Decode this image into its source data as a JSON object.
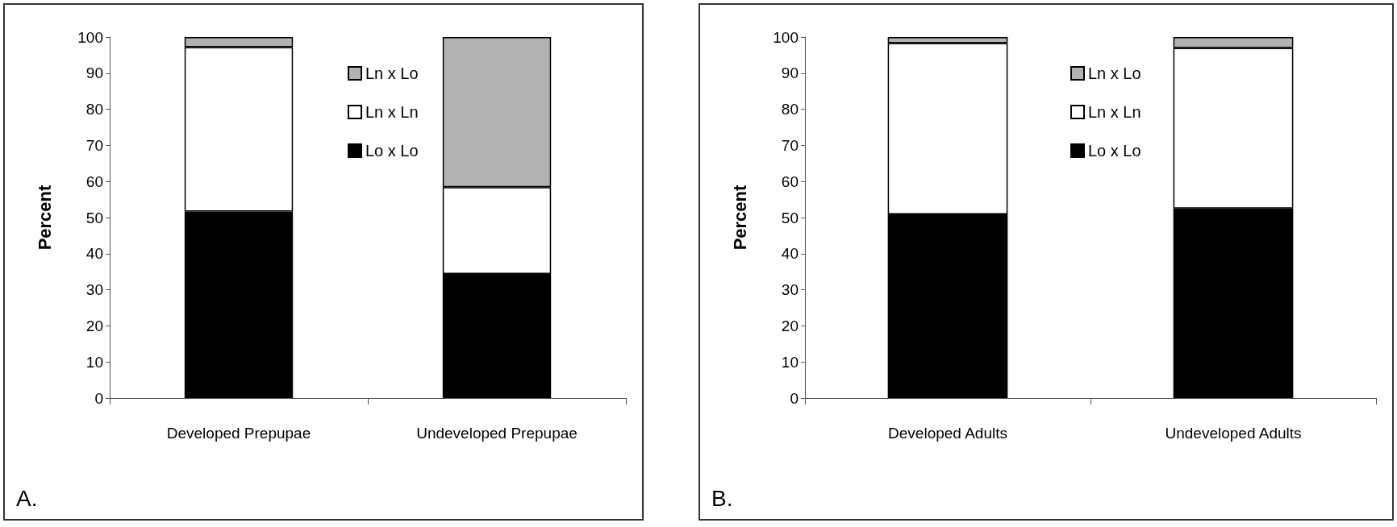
{
  "chart_data": [
    {
      "type": "bar",
      "stacked": true,
      "ylabel": "Percent",
      "categories": [
        "Developed Prepupae",
        "Undeveloped Prepupae"
      ],
      "series": [
        {
          "name": "Lo x Lo",
          "color": "#000000",
          "values": [
            51.7,
            34.4
          ]
        },
        {
          "name": "Ln x Ln",
          "color": "#ffffff",
          "values": [
            45.5,
            24.0
          ]
        },
        {
          "name": "Ln x Lo",
          "color": "#b2b2b2",
          "values": [
            2.8,
            41.6
          ]
        }
      ],
      "ylim": [
        0,
        100
      ],
      "yticks": [
        0,
        10,
        20,
        30,
        40,
        50,
        60,
        70,
        80,
        90,
        100
      ],
      "grid": false,
      "legend": "top",
      "annotations": [
        "A."
      ]
    },
    {
      "type": "bar",
      "stacked": true,
      "ylabel": "Percent",
      "categories": [
        "Developed Adults",
        "Undeveloped Adults"
      ],
      "series": [
        {
          "name": "Lo x Lo",
          "color": "#000000",
          "values": [
            50.9,
            52.5
          ]
        },
        {
          "name": "Ln x Ln",
          "color": "#ffffff",
          "values": [
            47.4,
            44.5
          ]
        },
        {
          "name": "Ln x Lo",
          "color": "#b2b2b2",
          "values": [
            1.7,
            3.0
          ]
        }
      ],
      "ylim": [
        0,
        100
      ],
      "yticks": [
        0,
        10,
        20,
        30,
        40,
        50,
        60,
        70,
        80,
        90,
        100
      ],
      "grid": false,
      "legend": "top",
      "annotations": [
        "B."
      ]
    }
  ]
}
